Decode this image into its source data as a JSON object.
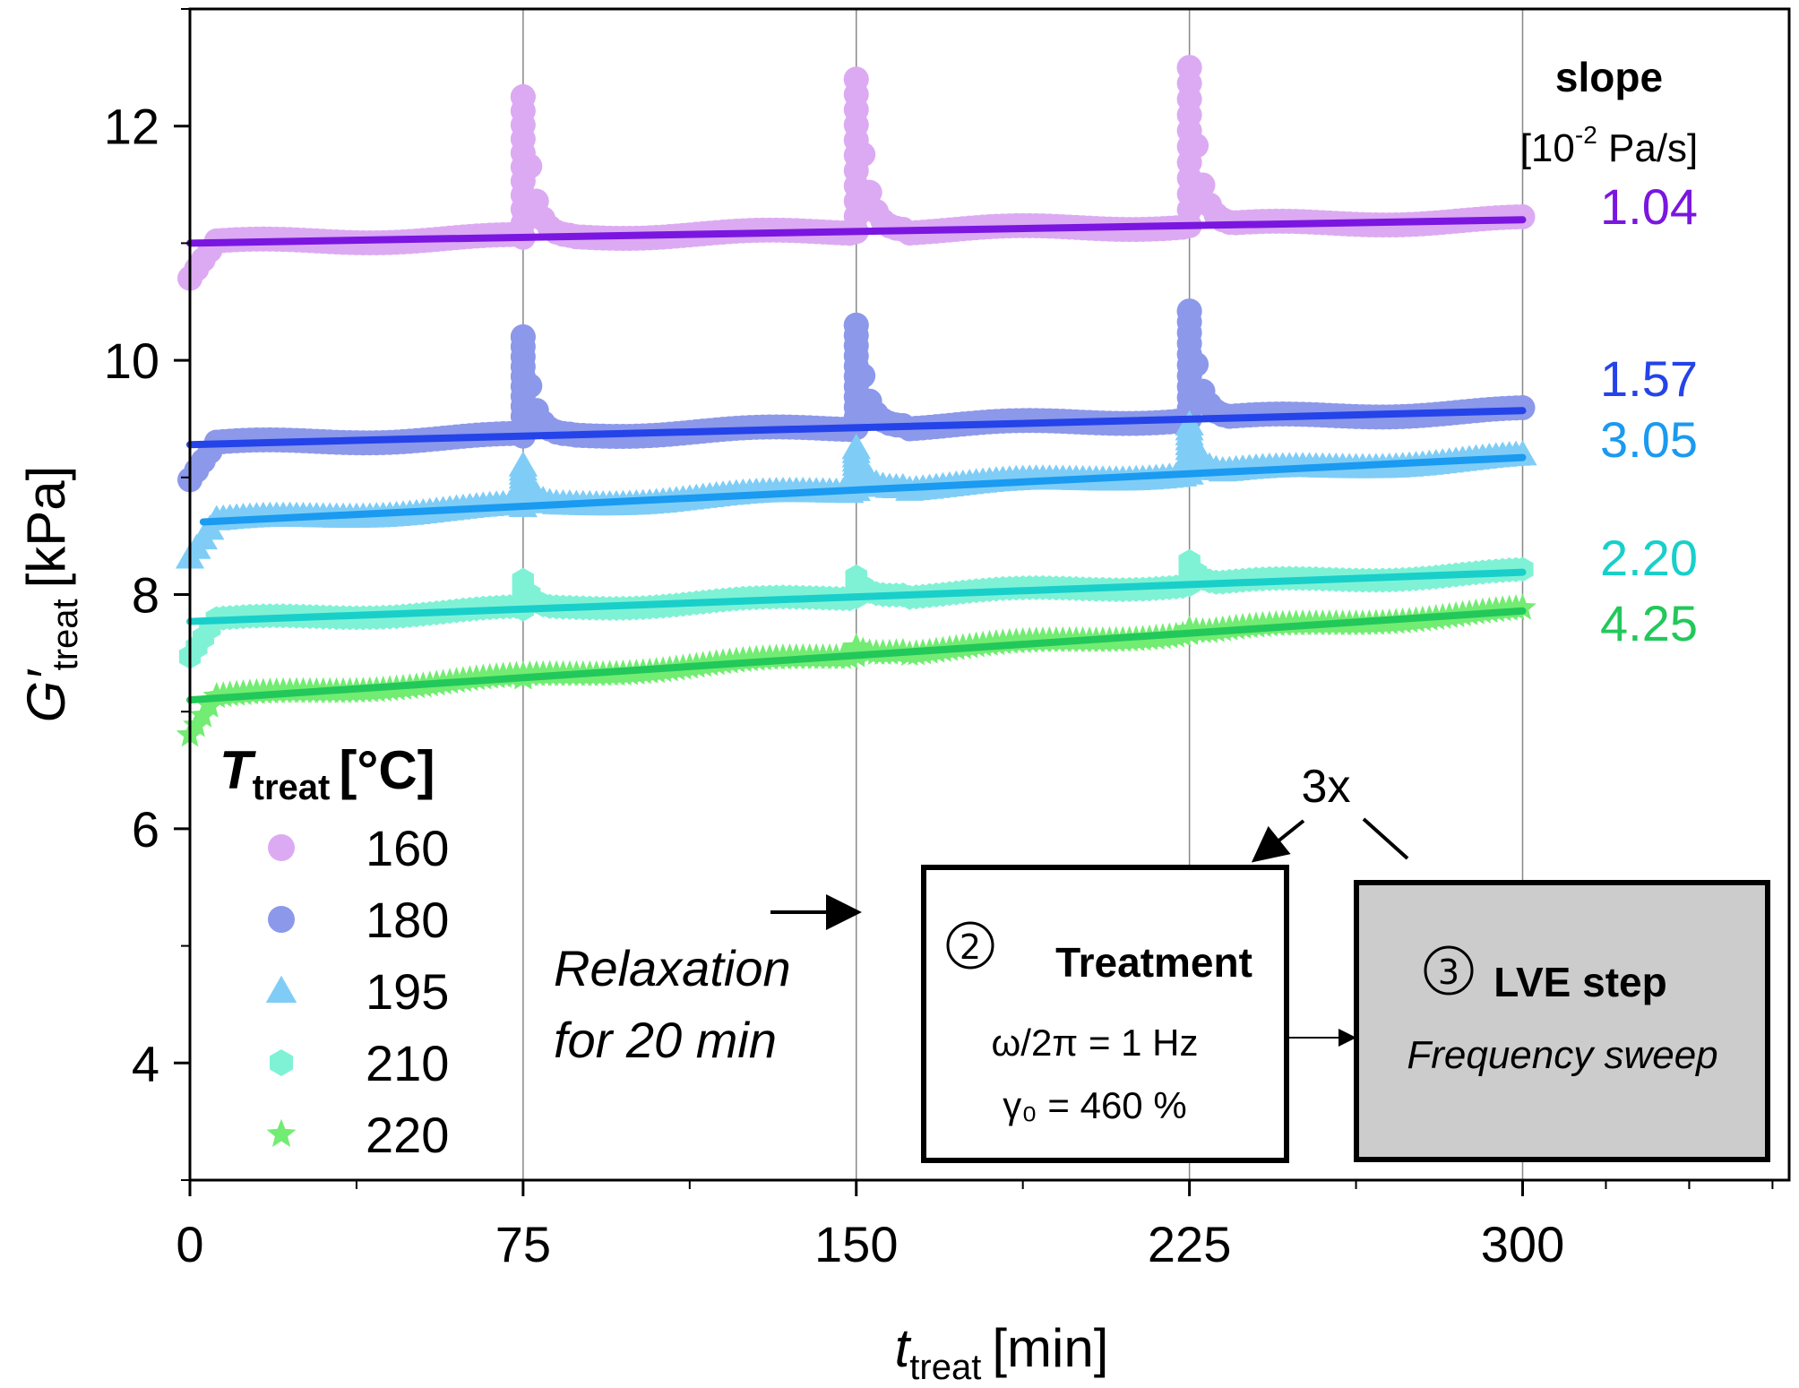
{
  "chart_data": {
    "type": "scatter",
    "title": "",
    "x_axis": {
      "label": "t",
      "label_subscript": "treat",
      "label_unit": "[min]",
      "range": [
        0,
        360
      ],
      "ticks": [
        0,
        75,
        150,
        225,
        300
      ],
      "tick_labels": [
        "0",
        "75",
        "150",
        "225",
        "300"
      ],
      "vertical_gridlines": [
        75,
        150,
        225,
        300
      ]
    },
    "y_axis": {
      "label": "G′",
      "label_subscript": "treat",
      "label_unit": "[kPa]",
      "range": [
        3,
        13
      ],
      "ticks": [
        4,
        6,
        8,
        10,
        12
      ],
      "tick_labels": [
        "4",
        "6",
        "8",
        "10",
        "12"
      ]
    },
    "legend": {
      "title": "T",
      "title_subscript": "treat",
      "title_unit": "[°C]",
      "placement": "bottom-left"
    },
    "slope_header": {
      "title": "slope",
      "unit_prefix": "[10",
      "unit_exp": "-2",
      "unit_suffix": " Pa/s]"
    },
    "series": [
      {
        "name": "160",
        "marker": "circle",
        "color": "#dcaaf2",
        "fit_color": "#7a16e0",
        "fit_start": [
          0,
          11.0
        ],
        "fit_end": [
          300,
          11.2
        ],
        "baseline": 11.03,
        "peaks": [
          12.25,
          12.4,
          12.5
        ],
        "slope": "1.04"
      },
      {
        "name": "180",
        "marker": "circle",
        "color": "#8c98ea",
        "fit_color": "#2443e8",
        "fit_start": [
          0,
          9.28
        ],
        "fit_end": [
          300,
          9.57
        ],
        "baseline": 9.35,
        "peaks": [
          10.2,
          10.3,
          10.42
        ],
        "slope": "1.57"
      },
      {
        "name": "195",
        "marker": "triangle",
        "color": "#7fcdf6",
        "fit_color": "#1a9af0",
        "fit_start": [
          3,
          8.62
        ],
        "fit_end": [
          300,
          9.17
        ],
        "baseline": 8.75,
        "peaks": [
          9.1,
          9.25,
          9.45
        ],
        "slope": "3.05"
      },
      {
        "name": "210",
        "marker": "hexagon",
        "color": "#7ff2d6",
        "fit_color": "#19cfc9",
        "fit_start": [
          0,
          7.77
        ],
        "fit_end": [
          300,
          8.19
        ],
        "baseline": 7.85,
        "peaks": [
          8.12,
          8.15,
          8.28
        ],
        "slope": "2.20"
      },
      {
        "name": "220",
        "marker": "star",
        "color": "#72ec72",
        "fit_color": "#22c85a",
        "fit_start": [
          0,
          7.1
        ],
        "fit_end": [
          300,
          7.86
        ],
        "baseline": 7.15,
        "peaks": [
          7.3,
          7.55,
          7.7
        ],
        "slope": "4.25"
      }
    ],
    "annotations": {
      "relaxation_line1": "Relaxation",
      "relaxation_line2": "for 20 min",
      "repeat": "3x",
      "treatment_number": "②",
      "treatment_title": "Treatment",
      "treatment_freq": "ω/2π = 1 Hz",
      "treatment_strain": "γ₀ = 460 %",
      "lve_number": "③",
      "lve_title": "LVE step",
      "lve_subtitle": "Frequency sweep"
    }
  }
}
